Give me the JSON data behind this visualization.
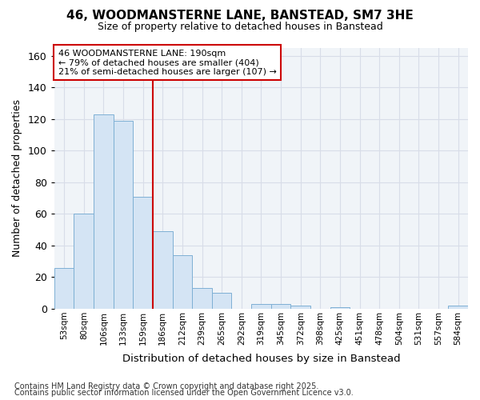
{
  "title1": "46, WOODMANSTERNE LANE, BANSTEAD, SM7 3HE",
  "title2": "Size of property relative to detached houses in Banstead",
  "xlabel": "Distribution of detached houses by size in Banstead",
  "ylabel": "Number of detached properties",
  "categories": [
    "53sqm",
    "80sqm",
    "106sqm",
    "133sqm",
    "159sqm",
    "186sqm",
    "212sqm",
    "239sqm",
    "265sqm",
    "292sqm",
    "319sqm",
    "345sqm",
    "372sqm",
    "398sqm",
    "425sqm",
    "451sqm",
    "478sqm",
    "504sqm",
    "531sqm",
    "557sqm",
    "584sqm"
  ],
  "values": [
    26,
    60,
    123,
    119,
    71,
    49,
    34,
    13,
    10,
    0,
    3,
    3,
    2,
    0,
    1,
    0,
    0,
    0,
    0,
    0,
    2
  ],
  "bar_color": "#d4e4f4",
  "bar_edgecolor": "#7eb0d4",
  "vline_x": 4.5,
  "vline_color": "#cc0000",
  "annotation_text": "46 WOODMANSTERNE LANE: 190sqm\n← 79% of detached houses are smaller (404)\n21% of semi-detached houses are larger (107) →",
  "annotation_box_color": "#cc0000",
  "ylim": [
    0,
    165
  ],
  "yticks": [
    0,
    20,
    40,
    60,
    80,
    100,
    120,
    140,
    160
  ],
  "footnote1": "Contains HM Land Registry data © Crown copyright and database right 2025.",
  "footnote2": "Contains public sector information licensed under the Open Government Licence v3.0.",
  "bg_color": "#f0f4f8",
  "grid_color": "#d8dde8"
}
